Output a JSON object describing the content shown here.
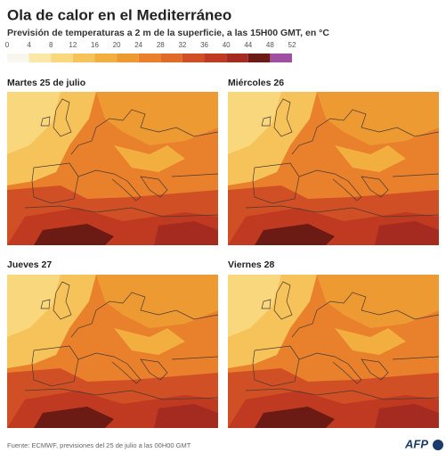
{
  "header": {
    "title": "Ola de calor en el Mediterráneo",
    "subtitle": "Previsión de temperaturas a 2 m de la superficie, a las 15H00 GMT, en °C"
  },
  "legend": {
    "ticks": [
      0,
      4,
      8,
      12,
      16,
      20,
      24,
      28,
      32,
      36,
      40,
      44,
      48,
      52
    ],
    "colors": [
      "#f8f6ee",
      "#fbe7a6",
      "#f9d77d",
      "#f6c35a",
      "#f2ae3f",
      "#ee9a33",
      "#e9812c",
      "#e06a28",
      "#d04f25",
      "#c03a22",
      "#a52a1f",
      "#6b1a14",
      "#a050a0"
    ]
  },
  "panels": [
    {
      "label": "Martes 25 de julio"
    },
    {
      "label": "Miércoles 26"
    },
    {
      "label": "Jueves 27"
    },
    {
      "label": "Viernes 28"
    }
  ],
  "footer": {
    "source": "Fuente: ECMWF, previsiones del 25 de julio a las 00H00 GMT",
    "logo": "AFP"
  }
}
